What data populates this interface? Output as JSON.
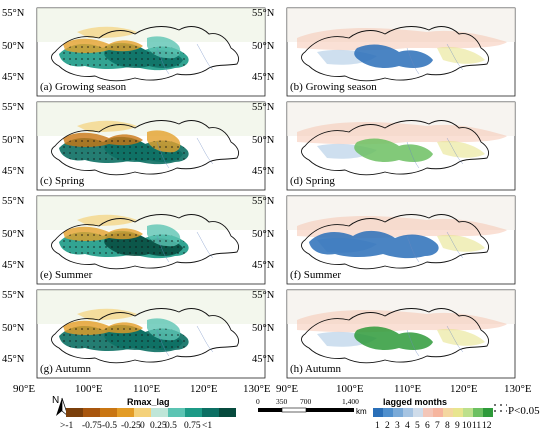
{
  "panels": [
    {
      "label": "(a) Growing season",
      "type": "rmax",
      "variant": 0
    },
    {
      "label": "(b) Growing season",
      "type": "lag",
      "variant": 0
    },
    {
      "label": "(c) Spring",
      "type": "rmax",
      "variant": 1
    },
    {
      "label": "(d) Spring",
      "type": "lag",
      "variant": 1
    },
    {
      "label": "(e) Summer",
      "type": "rmax",
      "variant": 2
    },
    {
      "label": "(f) Summer",
      "type": "lag",
      "variant": 2
    },
    {
      "label": "(g) Autumn",
      "type": "rmax",
      "variant": 3
    },
    {
      "label": "(h) Autumn",
      "type": "lag",
      "variant": 3
    }
  ],
  "axes": {
    "lat_ticks": [
      "55°N",
      "50°N",
      "45°N"
    ],
    "lon_ticks_left": [
      "90°E",
      "100°E",
      "110°E",
      "120°E",
      "130°E"
    ],
    "lon_ticks_right": [
      "90°E",
      "100°E",
      "110°E",
      "120°E",
      "130°E"
    ]
  },
  "legend_rmax": {
    "title": "Rmax_lag",
    "labels": [
      ">-1",
      "-0.75",
      "-0.5",
      "-0.25",
      "0",
      "0.25",
      "0.5",
      "0.75",
      "<1"
    ],
    "colors": [
      "#7a3f0b",
      "#a8560e",
      "#c97613",
      "#e39c26",
      "#f4d17a",
      "#bfe6d8",
      "#5cc4b3",
      "#1c9a86",
      "#0c6f63",
      "#064a3d"
    ]
  },
  "scalebar": {
    "labels": [
      "0",
      "350",
      "700",
      "1,400"
    ],
    "unit": "km"
  },
  "north_arrow": {
    "label": "N"
  },
  "legend_lag": {
    "title": "lagged months",
    "labels": [
      "1",
      "2",
      "3",
      "4",
      "5",
      "6",
      "7",
      "8",
      "9",
      "10",
      "11",
      "12"
    ],
    "colors": [
      "#2a6fb8",
      "#4f8fcd",
      "#7aaad8",
      "#a6c4e2",
      "#cfdcea",
      "#f3c6b8",
      "#f6b59e",
      "#f4d7a0",
      "#e8e58f",
      "#bde08c",
      "#6cc061",
      "#2e9a3a"
    ]
  },
  "significance": {
    "label": "P<0.05"
  }
}
